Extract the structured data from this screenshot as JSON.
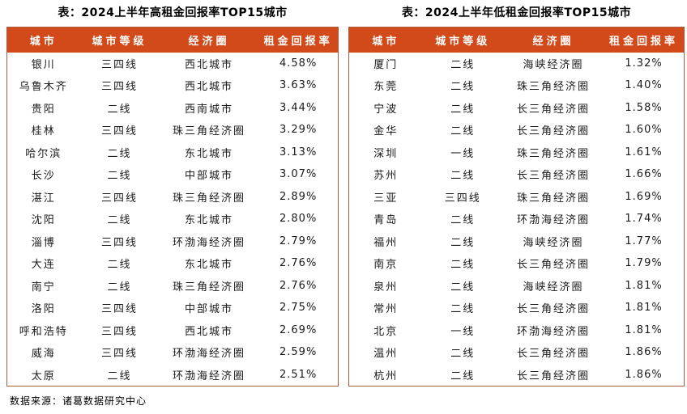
{
  "colors": {
    "header_bg": "#D2491A",
    "header_text": "#FFFFFF",
    "table_border": "#A85C42",
    "body_text": "#1A1A1A",
    "title_text": "#000000"
  },
  "chart_data": [
    {
      "type": "table",
      "title": "表：2024上半年高租金回报率TOP15城市",
      "columns": [
        "城市",
        "城市等级",
        "经济圈",
        "租金回报率"
      ],
      "rows": [
        [
          "银川",
          "三四线",
          "西北城市",
          "4.58%"
        ],
        [
          "乌鲁木齐",
          "三四线",
          "西北城市",
          "3.63%"
        ],
        [
          "贵阳",
          "二线",
          "西南城市",
          "3.44%"
        ],
        [
          "桂林",
          "三四线",
          "珠三角经济圈",
          "3.29%"
        ],
        [
          "哈尔滨",
          "二线",
          "东北城市",
          "3.13%"
        ],
        [
          "长沙",
          "二线",
          "中部城市",
          "3.07%"
        ],
        [
          "湛江",
          "三四线",
          "珠三角经济圈",
          "2.89%"
        ],
        [
          "沈阳",
          "二线",
          "东北城市",
          "2.80%"
        ],
        [
          "淄博",
          "三四线",
          "环渤海经济圈",
          "2.79%"
        ],
        [
          "大连",
          "二线",
          "东北城市",
          "2.76%"
        ],
        [
          "南宁",
          "二线",
          "珠三角经济圈",
          "2.76%"
        ],
        [
          "洛阳",
          "三四线",
          "中部城市",
          "2.75%"
        ],
        [
          "呼和浩特",
          "三四线",
          "西北城市",
          "2.69%"
        ],
        [
          "威海",
          "三四线",
          "环渤海经济圈",
          "2.59%"
        ],
        [
          "太原",
          "二线",
          "环渤海经济圈",
          "2.51%"
        ]
      ]
    },
    {
      "type": "table",
      "title": "表：2024上半年低租金回报率TOP15城市",
      "columns": [
        "城市",
        "城市等级",
        "经济圈",
        "租金回报率"
      ],
      "rows": [
        [
          "厦门",
          "二线",
          "海峡经济圈",
          "1.32%"
        ],
        [
          "东莞",
          "二线",
          "珠三角经济圈",
          "1.40%"
        ],
        [
          "宁波",
          "二线",
          "长三角经济圈",
          "1.58%"
        ],
        [
          "金华",
          "二线",
          "长三角经济圈",
          "1.60%"
        ],
        [
          "深圳",
          "一线",
          "珠三角经济圈",
          "1.61%"
        ],
        [
          "苏州",
          "二线",
          "长三角经济圈",
          "1.66%"
        ],
        [
          "三亚",
          "三四线",
          "珠三角经济圈",
          "1.69%"
        ],
        [
          "青岛",
          "二线",
          "环渤海经济圈",
          "1.74%"
        ],
        [
          "福州",
          "二线",
          "海峡经济圈",
          "1.77%"
        ],
        [
          "南京",
          "二线",
          "长三角经济圈",
          "1.79%"
        ],
        [
          "泉州",
          "二线",
          "海峡经济圈",
          "1.81%"
        ],
        [
          "常州",
          "二线",
          "长三角经济圈",
          "1.81%"
        ],
        [
          "北京",
          "一线",
          "环渤海经济圈",
          "1.81%"
        ],
        [
          "温州",
          "二线",
          "长三角经济圈",
          "1.86%"
        ],
        [
          "杭州",
          "二线",
          "长三角经济圈",
          "1.86%"
        ]
      ]
    }
  ],
  "footer": {
    "source": "数据来源：诸葛数据研究中心"
  }
}
